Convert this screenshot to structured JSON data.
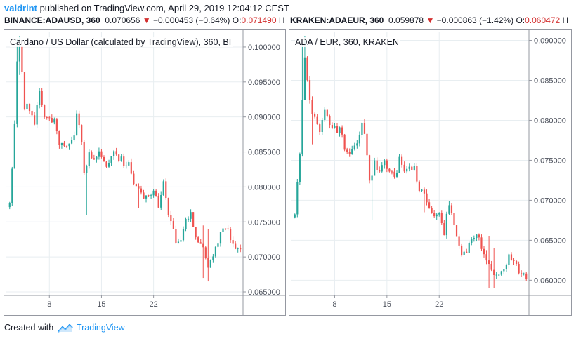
{
  "header": {
    "user": "valdrint",
    "text": " published on TradingView.com, April 29, 2019 12:04:12 CEST"
  },
  "quotes": [
    {
      "symbol": "BINANCE:ADAUSD, 360",
      "last": "0.070656",
      "arrow": "▼",
      "change": "−0.000453 (−0.64%)",
      "open_label": "O:",
      "open": "0.071490",
      "tail": "H"
    },
    {
      "symbol": "KRAKEN:ADAEUR, 360",
      "last": "0.059878",
      "arrow": "▼",
      "change": "−0.000863 (−1.42%)",
      "open_label": "O:",
      "open": "0.060472",
      "tail": "H"
    }
  ],
  "footer": {
    "prefix": "Created with ",
    "brand": "TradingView"
  },
  "colors": {
    "up": "#26a69a",
    "down": "#ef5350",
    "grid": "#e8eef1",
    "axis": "#9598a1",
    "brand": "#2196f3"
  },
  "chart_data": [
    {
      "type": "candlestick",
      "title": "Cardano / US Dollar (calculated by TradingView), 360, BI",
      "ylim": [
        0.0645,
        0.1022
      ],
      "y_ticks": [
        "0.100000",
        "0.095000",
        "0.090000",
        "0.085000",
        "0.080000",
        "0.075000",
        "0.070000",
        "0.065000"
      ],
      "x_ticks": [
        {
          "label": "8",
          "index": 16
        },
        {
          "label": "15",
          "index": 37
        },
        {
          "label": "22",
          "index": 58
        }
      ],
      "anchors": [
        [
          0,
          0.0775
        ],
        [
          2,
          0.0885
        ],
        [
          3,
          0.0985
        ],
        [
          4,
          0.1005
        ],
        [
          6,
          0.0915
        ],
        [
          8,
          0.0915
        ],
        [
          10,
          0.0895
        ],
        [
          12,
          0.0935
        ],
        [
          14,
          0.0905
        ],
        [
          16,
          0.0895
        ],
        [
          18,
          0.089
        ],
        [
          20,
          0.0865
        ],
        [
          22,
          0.086
        ],
        [
          24,
          0.0865
        ],
        [
          26,
          0.088
        ],
        [
          27,
          0.0905
        ],
        [
          29,
          0.086
        ],
        [
          30,
          0.082
        ],
        [
          32,
          0.0845
        ],
        [
          34,
          0.084
        ],
        [
          36,
          0.085
        ],
        [
          38,
          0.0835
        ],
        [
          40,
          0.083
        ],
        [
          42,
          0.085
        ],
        [
          44,
          0.084
        ],
        [
          46,
          0.0835
        ],
        [
          48,
          0.0835
        ],
        [
          50,
          0.08
        ],
        [
          52,
          0.08
        ],
        [
          54,
          0.0785
        ],
        [
          56,
          0.079
        ],
        [
          58,
          0.0795
        ],
        [
          60,
          0.0775
        ],
        [
          62,
          0.0805
        ],
        [
          64,
          0.076
        ],
        [
          66,
          0.0735
        ],
        [
          67,
          0.0725
        ],
        [
          69,
          0.073
        ],
        [
          71,
          0.075
        ],
        [
          73,
          0.076
        ],
        [
          75,
          0.073
        ],
        [
          77,
          0.0715
        ],
        [
          79,
          0.07
        ],
        [
          80,
          0.0685
        ],
        [
          82,
          0.0705
        ],
        [
          84,
          0.072
        ],
        [
          86,
          0.074
        ],
        [
          88,
          0.0735
        ],
        [
          90,
          0.0715
        ],
        [
          92,
          0.0712
        ],
        [
          93,
          0.0707
        ]
      ],
      "wicks": [
        [
          3,
          0.1012,
          0.093
        ],
        [
          4,
          0.1015,
          0.096
        ],
        [
          7,
          0.0945,
          0.085
        ],
        [
          31,
          0.0825,
          0.076
        ],
        [
          52,
          0.0805,
          0.077
        ],
        [
          78,
          0.0745,
          0.067
        ],
        [
          80,
          0.074,
          0.0665
        ]
      ]
    },
    {
      "type": "candlestick",
      "title": "ADA / EUR, 360, KRAKEN",
      "ylim": [
        0.0581,
        0.0911
      ],
      "y_ticks": [
        "0.090000",
        "0.085000",
        "0.080000",
        "0.075000",
        "0.070000",
        "0.065000",
        "0.060000"
      ],
      "x_ticks": [
        {
          "label": "8",
          "index": 16
        },
        {
          "label": "15",
          "index": 37
        },
        {
          "label": "22",
          "index": 58
        }
      ],
      "anchors": [
        [
          0,
          0.0682
        ],
        [
          2,
          0.076
        ],
        [
          3,
          0.083
        ],
        [
          4,
          0.088
        ],
        [
          6,
          0.082
        ],
        [
          8,
          0.0805
        ],
        [
          10,
          0.079
        ],
        [
          12,
          0.0815
        ],
        [
          14,
          0.0795
        ],
        [
          16,
          0.079
        ],
        [
          18,
          0.079
        ],
        [
          20,
          0.0765
        ],
        [
          22,
          0.076
        ],
        [
          24,
          0.0765
        ],
        [
          26,
          0.0785
        ],
        [
          27,
          0.08
        ],
        [
          29,
          0.076
        ],
        [
          30,
          0.072
        ],
        [
          32,
          0.0745
        ],
        [
          34,
          0.074
        ],
        [
          36,
          0.0745
        ],
        [
          38,
          0.0735
        ],
        [
          40,
          0.073
        ],
        [
          42,
          0.075
        ],
        [
          44,
          0.074
        ],
        [
          46,
          0.074
        ],
        [
          48,
          0.074
        ],
        [
          50,
          0.071
        ],
        [
          52,
          0.0705
        ],
        [
          54,
          0.069
        ],
        [
          56,
          0.0685
        ],
        [
          58,
          0.068
        ],
        [
          60,
          0.066
        ],
        [
          62,
          0.0695
        ],
        [
          64,
          0.0665
        ],
        [
          66,
          0.064
        ],
        [
          67,
          0.063
        ],
        [
          69,
          0.0638
        ],
        [
          71,
          0.065
        ],
        [
          73,
          0.066
        ],
        [
          75,
          0.064
        ],
        [
          77,
          0.0625
        ],
        [
          79,
          0.061
        ],
        [
          80,
          0.0602
        ],
        [
          82,
          0.061
        ],
        [
          84,
          0.0618
        ],
        [
          86,
          0.0628
        ],
        [
          88,
          0.062
        ],
        [
          90,
          0.061
        ],
        [
          92,
          0.0605
        ],
        [
          93,
          0.06
        ]
      ],
      "wicks": [
        [
          3,
          0.0895,
          0.084
        ],
        [
          4,
          0.0905,
          0.085
        ],
        [
          7,
          0.083,
          0.077
        ],
        [
          31,
          0.075,
          0.0675
        ],
        [
          52,
          0.0715,
          0.0685
        ],
        [
          78,
          0.0655,
          0.059
        ],
        [
          80,
          0.064,
          0.059
        ]
      ]
    }
  ]
}
